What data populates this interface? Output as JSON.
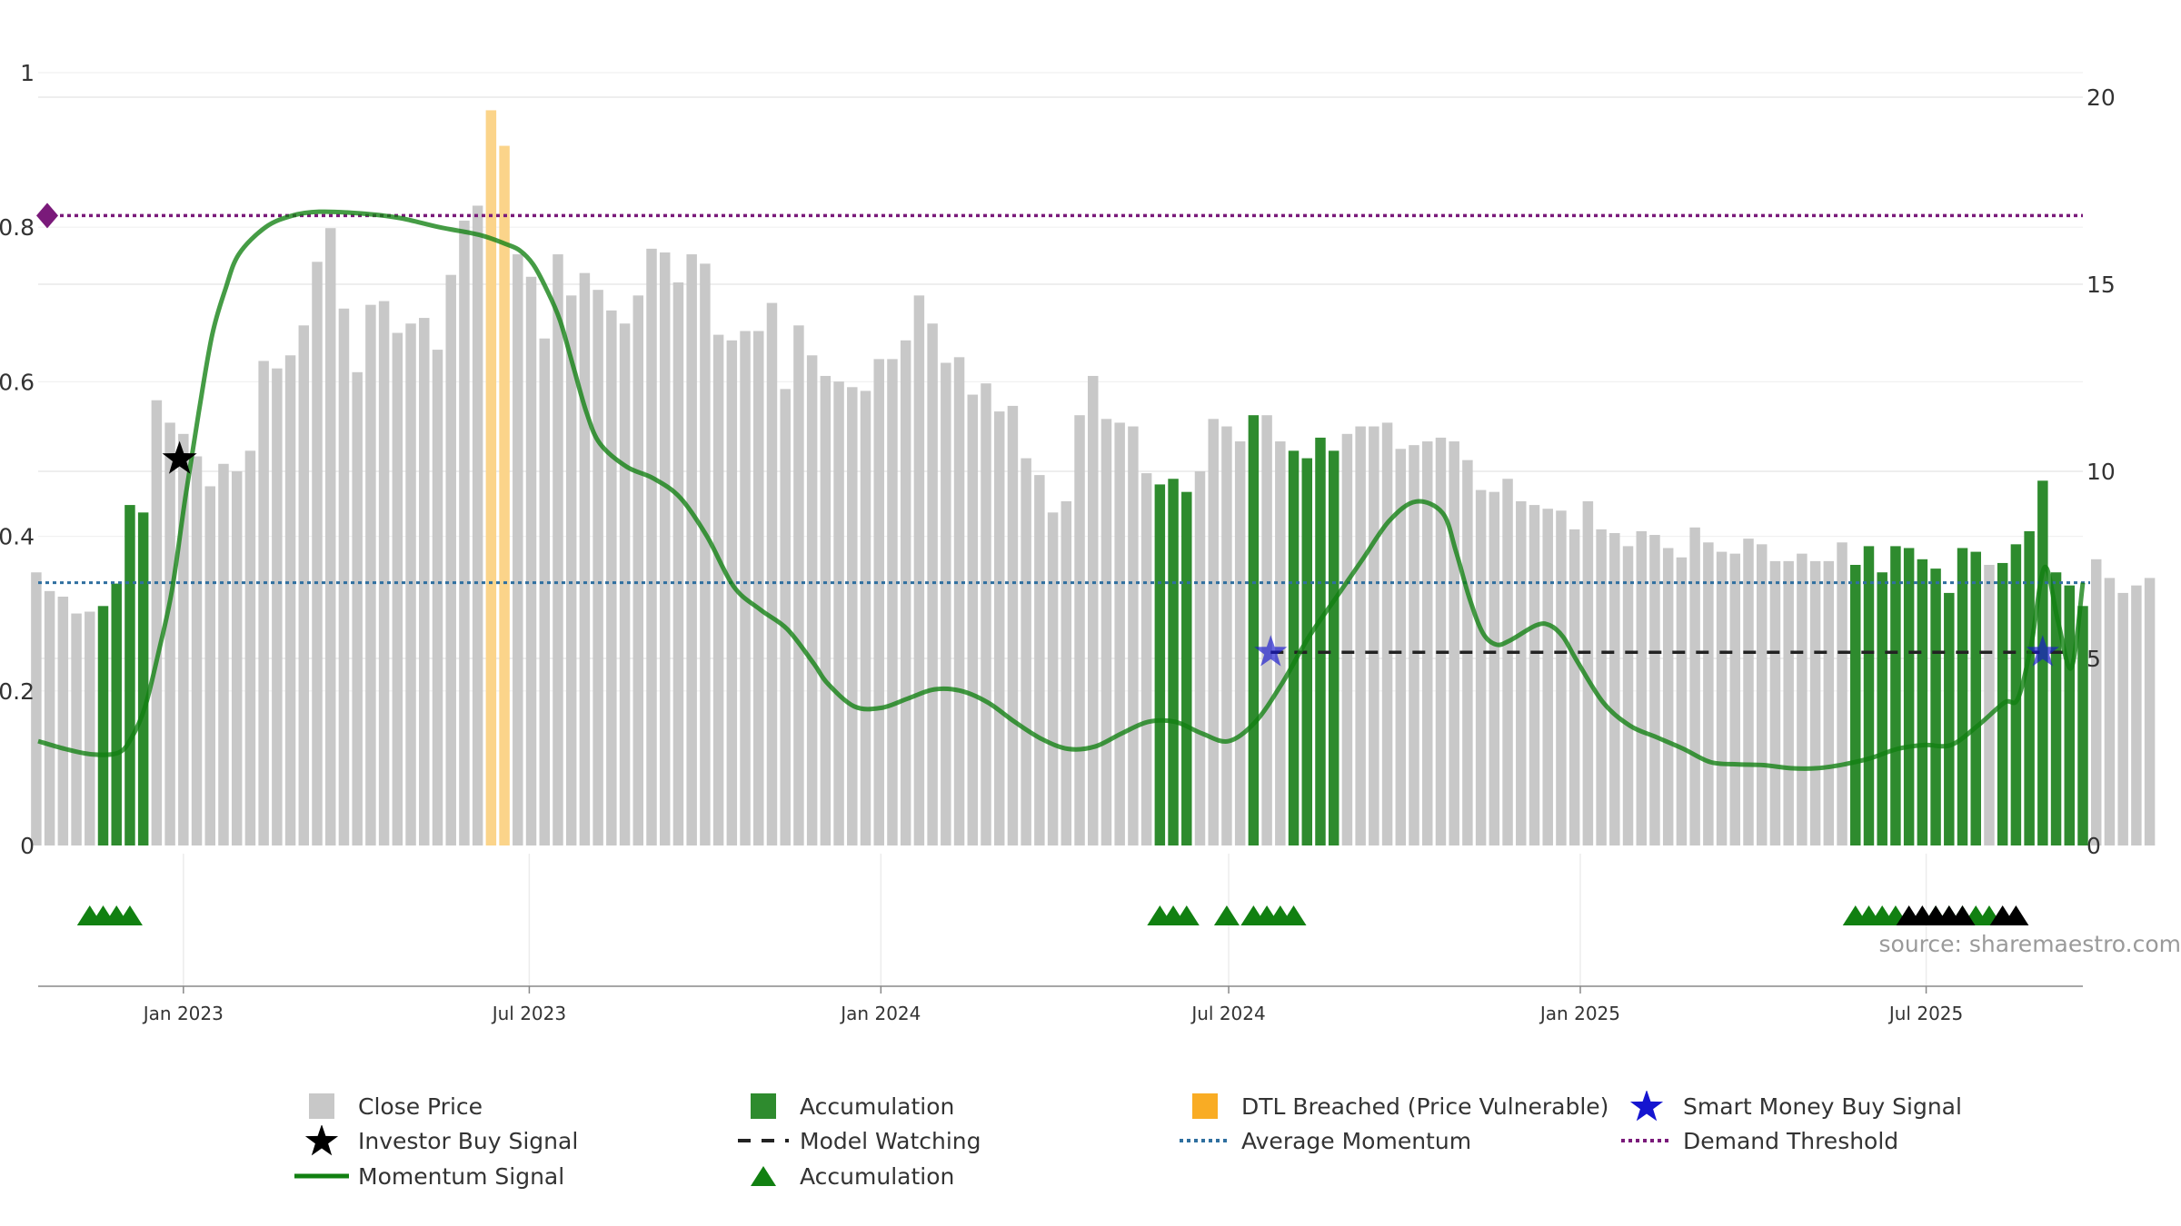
{
  "chart_data": {
    "type": "bar",
    "source_text": "source: sharemaestro.com",
    "left_axis": {
      "ticks": [
        "0",
        "0.2",
        "0.4",
        "0.6",
        "0.8",
        "1"
      ],
      "range": [
        0,
        1
      ]
    },
    "right_axis": {
      "ticks": [
        "0",
        "5",
        "10",
        "15",
        "20"
      ],
      "range": [
        0,
        20
      ]
    },
    "x_ticks": [
      {
        "label": "Jan 2023",
        "date": "2023-01-01"
      },
      {
        "label": "Jul 2023",
        "date": "2023-07-01"
      },
      {
        "label": "Jan 2024",
        "date": "2024-01-01"
      },
      {
        "label": "Jul 2024",
        "date": "2024-07-01"
      },
      {
        "label": "Jan 2025",
        "date": "2025-01-01"
      },
      {
        "label": "Jul 2025",
        "date": "2025-07-01"
      }
    ],
    "x_range": [
      "2022-10-17",
      "2025-09-21"
    ],
    "close_price": {
      "start_date": "2022-10-16",
      "step_days": 7,
      "values": [
        7.3,
        6.8,
        6.65,
        6.2,
        6.25,
        6.4,
        7.0,
        9.1,
        8.9,
        11.9,
        11.3,
        11.0,
        10.4,
        9.6,
        10.2,
        10.0,
        10.55,
        12.95,
        12.75,
        13.1,
        13.9,
        15.6,
        16.5,
        14.35,
        12.65,
        14.45,
        14.55,
        13.7,
        13.95,
        14.1,
        13.25,
        15.25,
        16.7,
        17.1,
        19.65,
        18.7,
        15.8,
        15.2,
        13.55,
        15.8,
        14.7,
        15.3,
        14.85,
        14.3,
        13.95,
        14.7,
        15.95,
        15.85,
        15.05,
        15.8,
        15.55,
        13.65,
        13.5,
        13.75,
        13.75,
        14.5,
        12.2,
        13.9,
        13.1,
        12.55,
        12.4,
        12.25,
        12.15,
        13.0,
        13.0,
        13.5,
        14.7,
        13.95,
        12.9,
        13.05,
        12.05,
        12.35,
        11.6,
        11.75,
        10.35,
        9.9,
        8.9,
        9.2,
        11.5,
        12.55,
        11.4,
        11.3,
        11.2,
        9.95,
        9.65,
        9.8,
        9.45,
        10.0,
        11.4,
        11.2,
        10.8,
        11.5,
        11.5,
        10.8,
        10.55,
        10.35,
        10.9,
        10.55,
        11.0,
        11.2,
        11.2,
        11.3,
        10.6,
        10.7,
        10.8,
        10.9,
        10.8,
        10.3,
        9.5,
        9.45,
        9.8,
        9.2,
        9.1,
        9.0,
        8.95,
        8.45,
        9.2,
        8.45,
        8.35,
        8.0,
        8.4,
        8.3,
        7.95,
        7.7,
        8.5,
        8.1,
        7.85,
        7.8,
        8.2,
        8.05,
        7.6,
        7.6,
        7.8,
        7.6,
        7.6,
        8.1,
        7.5,
        8.0,
        7.3,
        8.0,
        7.95,
        7.65,
        7.4,
        6.75,
        7.95,
        7.85,
        7.5,
        7.55,
        8.05,
        8.4,
        9.75,
        7.3,
        6.95,
        6.4,
        7.65,
        7.15,
        6.75,
        6.95,
        7.15
      ],
      "accumulation_indices": [
        5,
        6,
        7,
        8,
        84,
        85,
        86,
        91,
        94,
        95,
        96,
        97,
        136,
        137,
        138,
        139,
        140,
        141,
        142,
        143,
        144,
        145,
        147,
        148,
        149,
        150,
        151,
        152,
        153
      ],
      "dtl_indices": [
        34,
        35
      ]
    },
    "momentum_signal": {
      "points": [
        [
          "2022-10-17",
          0.135
        ],
        [
          "2022-10-31",
          0.125
        ],
        [
          "2022-11-14",
          0.118
        ],
        [
          "2022-11-28",
          0.12
        ],
        [
          "2022-12-05",
          0.14
        ],
        [
          "2022-12-12",
          0.18
        ],
        [
          "2022-12-19",
          0.25
        ],
        [
          "2022-12-26",
          0.33
        ],
        [
          "2023-01-02",
          0.45
        ],
        [
          "2023-01-09",
          0.56
        ],
        [
          "2023-01-16",
          0.66
        ],
        [
          "2023-01-23",
          0.72
        ],
        [
          "2023-01-30",
          0.765
        ],
        [
          "2023-02-13",
          0.8
        ],
        [
          "2023-02-27",
          0.815
        ],
        [
          "2023-03-13",
          0.82
        ],
        [
          "2023-04-03",
          0.818
        ],
        [
          "2023-04-24",
          0.812
        ],
        [
          "2023-05-15",
          0.8
        ],
        [
          "2023-06-05",
          0.79
        ],
        [
          "2023-06-19",
          0.778
        ],
        [
          "2023-06-26",
          0.77
        ],
        [
          "2023-07-03",
          0.752
        ],
        [
          "2023-07-10",
          0.72
        ],
        [
          "2023-07-17",
          0.68
        ],
        [
          "2023-07-24",
          0.62
        ],
        [
          "2023-07-31",
          0.56
        ],
        [
          "2023-08-07",
          0.52
        ],
        [
          "2023-08-21",
          0.49
        ],
        [
          "2023-09-04",
          0.475
        ],
        [
          "2023-09-18",
          0.45
        ],
        [
          "2023-10-02",
          0.4
        ],
        [
          "2023-10-16",
          0.335
        ],
        [
          "2023-10-30",
          0.305
        ],
        [
          "2023-11-13",
          0.28
        ],
        [
          "2023-11-27",
          0.235
        ],
        [
          "2023-12-04",
          0.21
        ],
        [
          "2023-12-18",
          0.18
        ],
        [
          "2024-01-01",
          0.178
        ],
        [
          "2024-01-15",
          0.19
        ],
        [
          "2024-01-29",
          0.202
        ],
        [
          "2024-02-12",
          0.2
        ],
        [
          "2024-02-26",
          0.185
        ],
        [
          "2024-03-11",
          0.16
        ],
        [
          "2024-03-25",
          0.138
        ],
        [
          "2024-04-08",
          0.125
        ],
        [
          "2024-04-22",
          0.128
        ],
        [
          "2024-05-06",
          0.145
        ],
        [
          "2024-05-20",
          0.16
        ],
        [
          "2024-06-03",
          0.16
        ],
        [
          "2024-06-17",
          0.145
        ],
        [
          "2024-07-01",
          0.135
        ],
        [
          "2024-07-15",
          0.16
        ],
        [
          "2024-07-29",
          0.21
        ],
        [
          "2024-08-12",
          0.27
        ],
        [
          "2024-08-26",
          0.32
        ],
        [
          "2024-09-09",
          0.37
        ],
        [
          "2024-09-23",
          0.42
        ],
        [
          "2024-10-07",
          0.445
        ],
        [
          "2024-10-21",
          0.43
        ],
        [
          "2024-10-28",
          0.38
        ],
        [
          "2024-11-04",
          0.32
        ],
        [
          "2024-11-11",
          0.275
        ],
        [
          "2024-11-18",
          0.26
        ],
        [
          "2024-11-25",
          0.265
        ],
        [
          "2024-12-09",
          0.285
        ],
        [
          "2024-12-16",
          0.285
        ],
        [
          "2024-12-23",
          0.27
        ],
        [
          "2024-12-30",
          0.24
        ],
        [
          "2025-01-13",
          0.185
        ],
        [
          "2025-01-27",
          0.155
        ],
        [
          "2025-02-10",
          0.14
        ],
        [
          "2025-02-24",
          0.125
        ],
        [
          "2025-03-10",
          0.108
        ],
        [
          "2025-03-24",
          0.105
        ],
        [
          "2025-04-07",
          0.104
        ],
        [
          "2025-04-21",
          0.1
        ],
        [
          "2025-05-05",
          0.1
        ],
        [
          "2025-05-19",
          0.105
        ],
        [
          "2025-06-02",
          0.113
        ],
        [
          "2025-06-16",
          0.125
        ],
        [
          "2025-06-30",
          0.13
        ],
        [
          "2025-07-14",
          0.13
        ],
        [
          "2025-07-28",
          0.155
        ],
        [
          "2025-08-11",
          0.185
        ],
        [
          "2025-08-18",
          0.19
        ],
        [
          "2025-08-25",
          0.26
        ],
        [
          "2025-09-01",
          0.36
        ],
        [
          "2025-09-08",
          0.29
        ],
        [
          "2025-09-15",
          0.23
        ],
        [
          "2025-09-21",
          0.34
        ]
      ]
    },
    "average_momentum": 0.34,
    "demand_threshold": 0.815,
    "model_watching": {
      "from": "2024-07-23",
      "to": "2025-09-14",
      "value": 0.25
    },
    "investor_buy_signal": {
      "date": "2022-12-30",
      "value": 0.5
    },
    "smart_money_buy_signals": [
      {
        "date": "2024-07-23",
        "value": 0.25
      },
      {
        "date": "2025-08-31",
        "value": 0.25
      }
    ],
    "accumulation_markers": {
      "green_dates": [
        "2022-11-13",
        "2022-11-20",
        "2022-11-27",
        "2022-12-04",
        "2024-05-26",
        "2024-06-02",
        "2024-06-09",
        "2024-06-30",
        "2024-07-14",
        "2024-07-21",
        "2024-07-28",
        "2024-08-04",
        "2025-05-25",
        "2025-06-01",
        "2025-06-08",
        "2025-06-15",
        "2025-07-06",
        "2025-07-13",
        "2025-07-20",
        "2025-07-27",
        "2025-08-03"
      ],
      "black_dates": [
        "2025-06-22",
        "2025-06-29",
        "2025-07-06",
        "2025-07-13",
        "2025-07-20",
        "2025-08-10",
        "2025-08-17"
      ]
    },
    "legend": [
      {
        "key": "close",
        "label": "Close Price"
      },
      {
        "key": "accum_bar",
        "label": "Accumulation"
      },
      {
        "key": "dtl",
        "label": "DTL Breached (Price Vulnerable)"
      },
      {
        "key": "smart",
        "label": "Smart Money Buy Signal"
      },
      {
        "key": "investor",
        "label": "Investor Buy Signal"
      },
      {
        "key": "watching",
        "label": "Model Watching"
      },
      {
        "key": "avg",
        "label": "Average Momentum"
      },
      {
        "key": "demand",
        "label": "Demand Threshold"
      },
      {
        "key": "momentum",
        "label": "Momentum Signal"
      },
      {
        "key": "accum_tri",
        "label": "Accumulation"
      }
    ],
    "colors": {
      "close": "#c8c8c8",
      "accumulation": "#2e8b2e",
      "dtl": "#fbd48a",
      "momentum": "#118011",
      "average": "#2f6f9f",
      "demand": "#7a1a7a",
      "smart": "#1515d0",
      "investor": "#000000",
      "watching": "#222222"
    }
  }
}
